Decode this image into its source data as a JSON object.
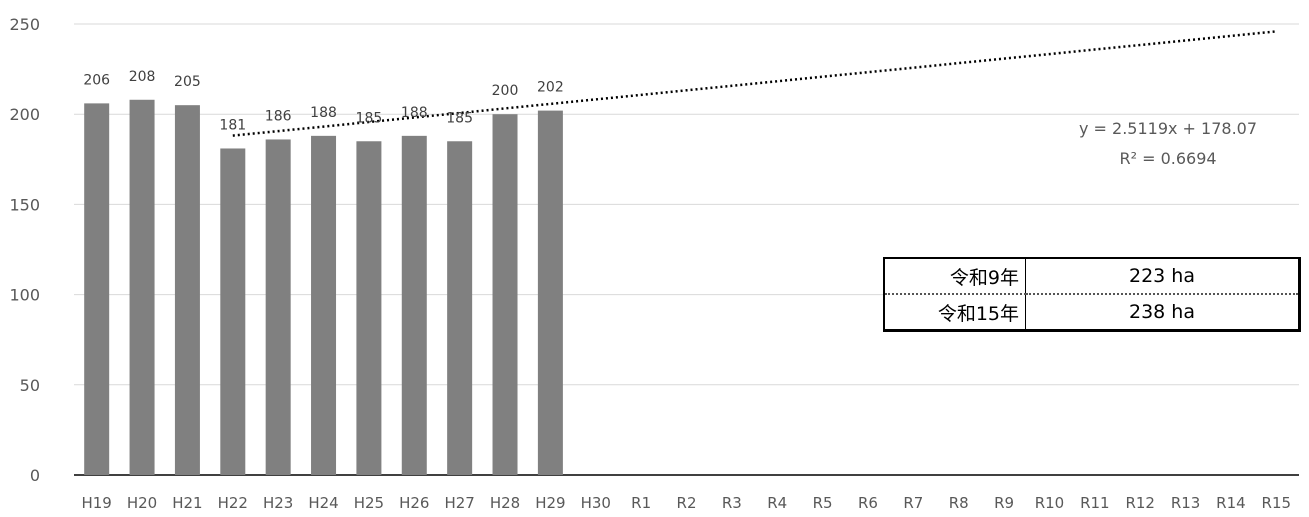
{
  "chart_data": {
    "type": "bar",
    "categories": [
      "H19",
      "H20",
      "H21",
      "H22",
      "H23",
      "H24",
      "H25",
      "H26",
      "H27",
      "H28",
      "H29",
      "H30",
      "R1",
      "R2",
      "R3",
      "R4",
      "R5",
      "R6",
      "R7",
      "R8",
      "R9",
      "R10",
      "R11",
      "R12",
      "R13",
      "R14",
      "R15"
    ],
    "values": [
      206,
      208,
      205,
      181,
      186,
      188,
      185,
      188,
      185,
      200,
      202,
      null,
      null,
      null,
      null,
      null,
      null,
      null,
      null,
      null,
      null,
      null,
      null,
      null,
      null,
      null,
      null
    ],
    "ylim": [
      0,
      250
    ],
    "yticks": [
      0,
      50,
      100,
      150,
      200,
      250
    ],
    "grid": true,
    "bar_color": "#808080",
    "trendline": {
      "type": "linear",
      "slope": 2.5119,
      "intercept": 178.07,
      "start_index": 3,
      "end_index": 26,
      "equation": "y = 2.5119x + 178.07",
      "r2": "R² = 0.6694"
    }
  },
  "forecast_table": [
    {
      "label": "令和9年",
      "value": "223 ha"
    },
    {
      "label": "令和15年",
      "value": "238 ha"
    }
  ]
}
